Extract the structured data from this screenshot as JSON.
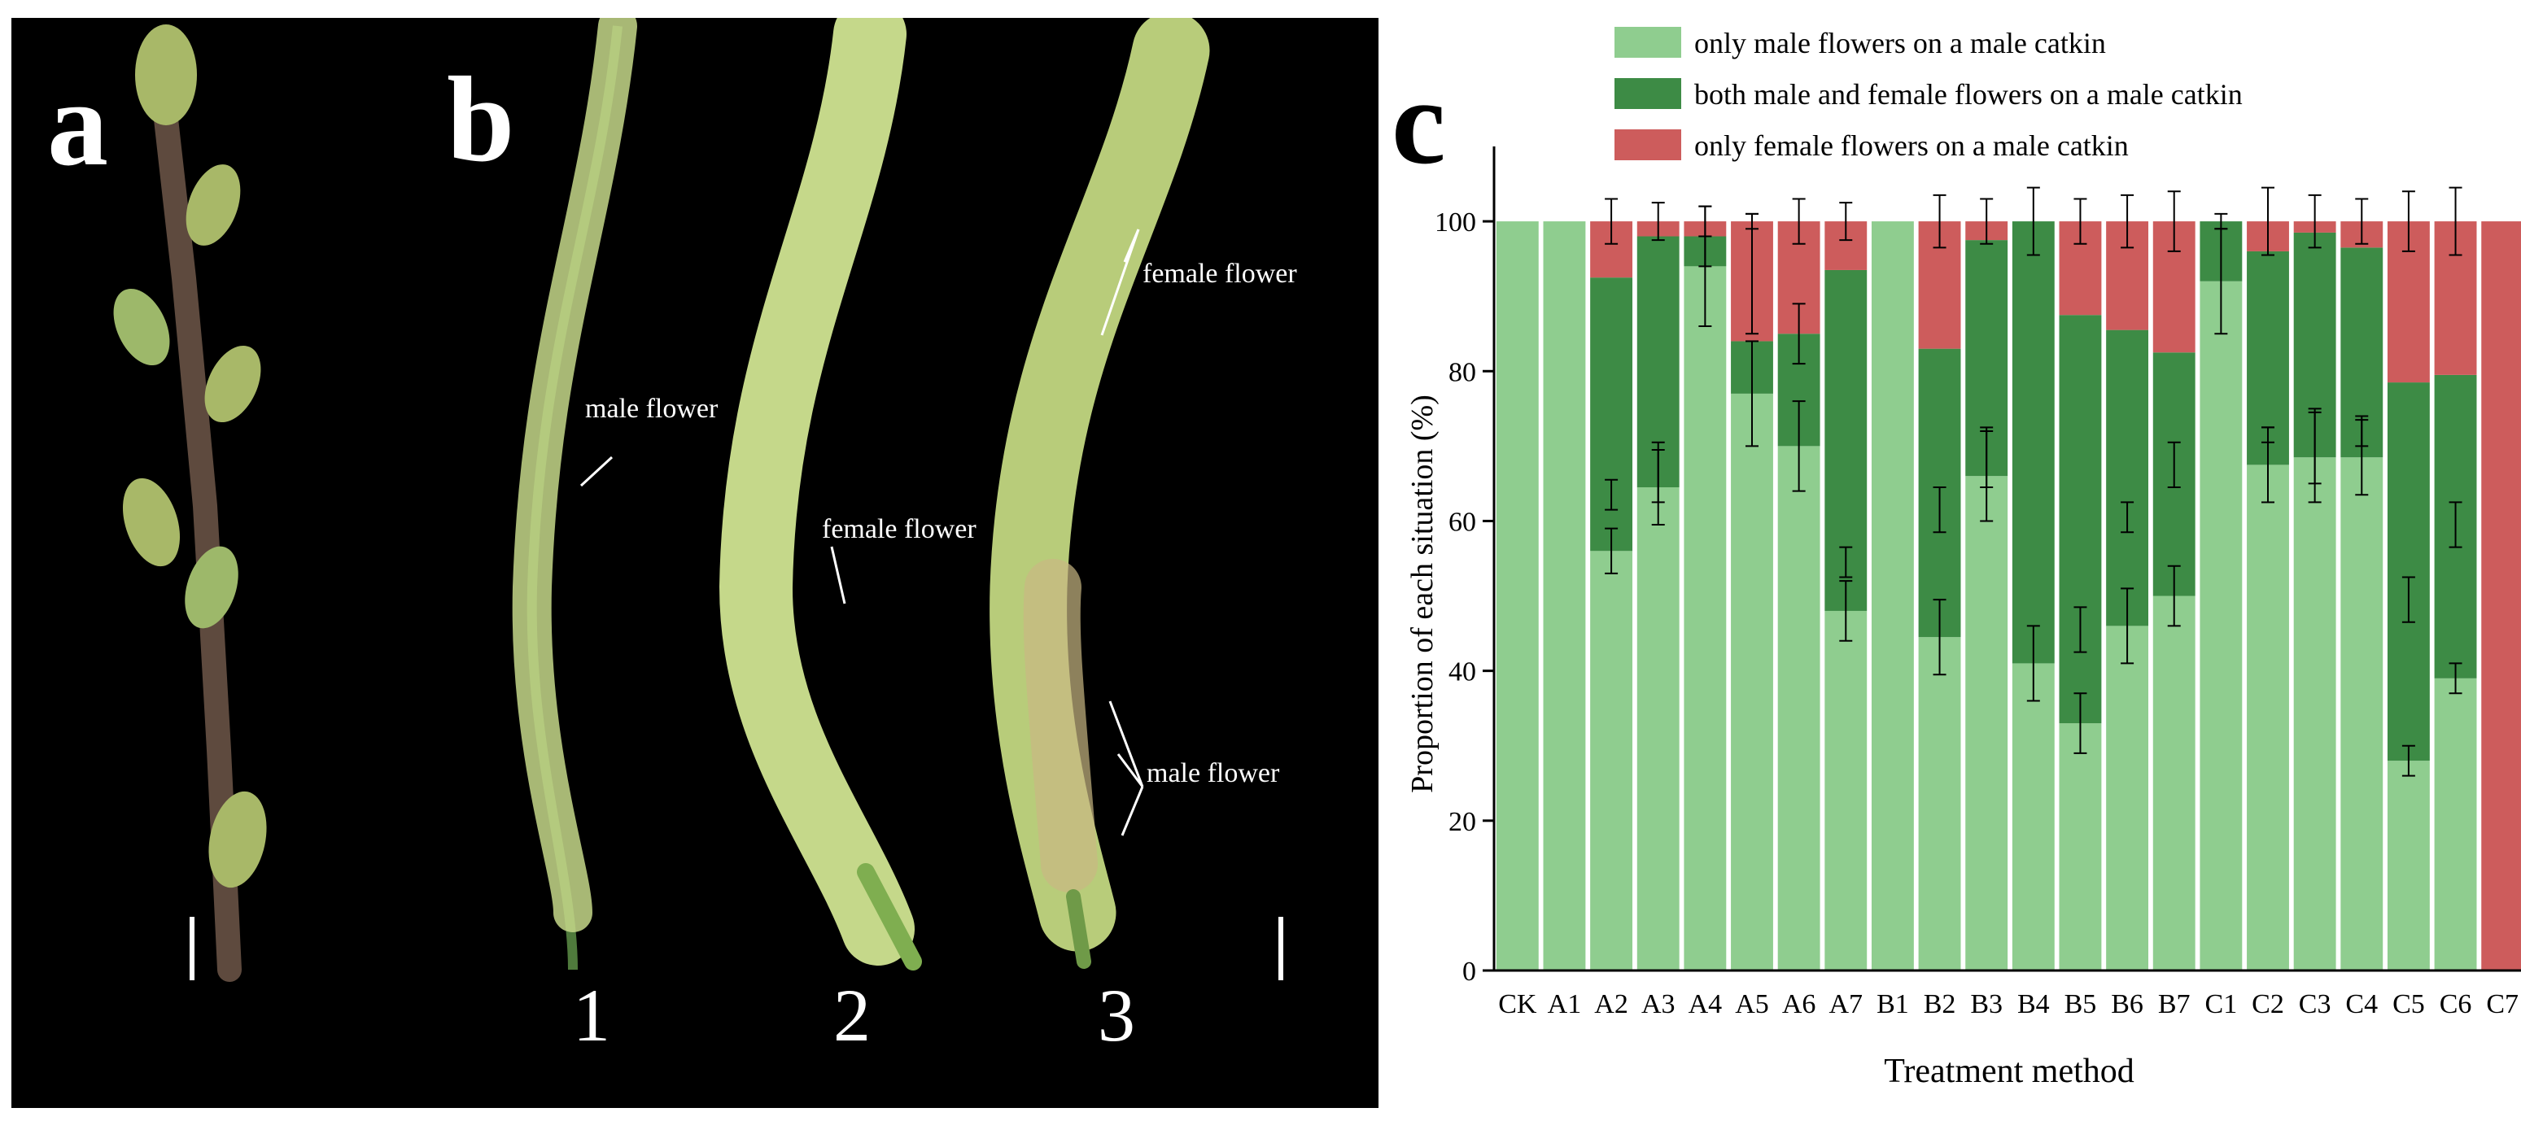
{
  "panels": {
    "a": {
      "letter": "a"
    },
    "b": {
      "letter": "b",
      "labels": {
        "male_flower_1": "male flower",
        "female_flower_2": "female flower",
        "female_flower_3": "female flower",
        "male_flower_3": "male flower"
      },
      "samples": [
        "1",
        "2",
        "3"
      ]
    },
    "c": {
      "letter": "c"
    }
  },
  "colors": {
    "male_only": "#8fcd8f",
    "both": "#3d8b45",
    "female_only": "#cd5c5c",
    "background": "#000000",
    "stem_brown": "#5e4a3e",
    "bud_green": "#a8b868",
    "catkin_light": "#c5d88a",
    "catkin_mid": "#9db86a"
  },
  "chart_data": {
    "type": "bar",
    "stacked": true,
    "title": "",
    "xlabel": "Treatment method",
    "ylabel": "Proportion of each situation (%)",
    "ylim": [
      0,
      110
    ],
    "yticks": [
      0,
      20,
      40,
      60,
      80,
      100
    ],
    "legend_position": "top-center",
    "categories": [
      "CK",
      "A1",
      "A2",
      "A3",
      "A4",
      "A5",
      "A6",
      "A7",
      "B1",
      "B2",
      "B3",
      "B4",
      "B5",
      "B6",
      "B7",
      "C1",
      "C2",
      "C3",
      "C4",
      "C5",
      "C6",
      "C7"
    ],
    "series": [
      {
        "name": "only male flowers on a male catkin",
        "color": "#8fcd8f",
        "values": [
          100,
          100,
          56,
          64.5,
          94,
          77,
          70,
          48,
          100,
          44.5,
          66,
          41,
          33,
          46,
          50,
          92,
          67.5,
          68.5,
          68.5,
          28,
          39,
          0
        ]
      },
      {
        "name": "both male and female flowers on a male catkin",
        "color": "#3d8b45",
        "values": [
          0,
          0,
          36.5,
          33.5,
          4,
          7,
          15,
          45.5,
          0,
          38.5,
          31.5,
          59,
          54.5,
          39.5,
          32.5,
          8,
          28.5,
          30,
          28,
          50.5,
          40.5,
          0
        ]
      },
      {
        "name": "only female flowers on a male catkin",
        "color": "#cd5c5c",
        "values": [
          0,
          0,
          7.5,
          2,
          2,
          16,
          15,
          6.5,
          0,
          17,
          2.5,
          0,
          12.5,
          14.5,
          17.5,
          0,
          4,
          1.5,
          3.5,
          21.5,
          20.5,
          100
        ]
      }
    ],
    "error_bars": {
      "male_only": [
        0,
        0,
        3,
        5,
        8,
        7,
        6,
        4,
        0,
        5,
        6,
        5,
        4,
        5,
        4,
        7,
        5,
        6,
        5,
        2,
        2,
        0
      ],
      "male_plus_female_only": [
        0,
        0,
        2,
        4,
        2,
        8,
        4,
        2,
        0,
        3,
        4,
        0,
        3,
        2,
        3,
        0,
        1,
        5,
        2,
        3,
        3,
        0
      ],
      "top": [
        0,
        0,
        3,
        2.5,
        2,
        1,
        3,
        2.5,
        0,
        3.5,
        3,
        4.5,
        3,
        3.5,
        4,
        1,
        4.5,
        3.5,
        3,
        4,
        4.5,
        0
      ]
    }
  }
}
